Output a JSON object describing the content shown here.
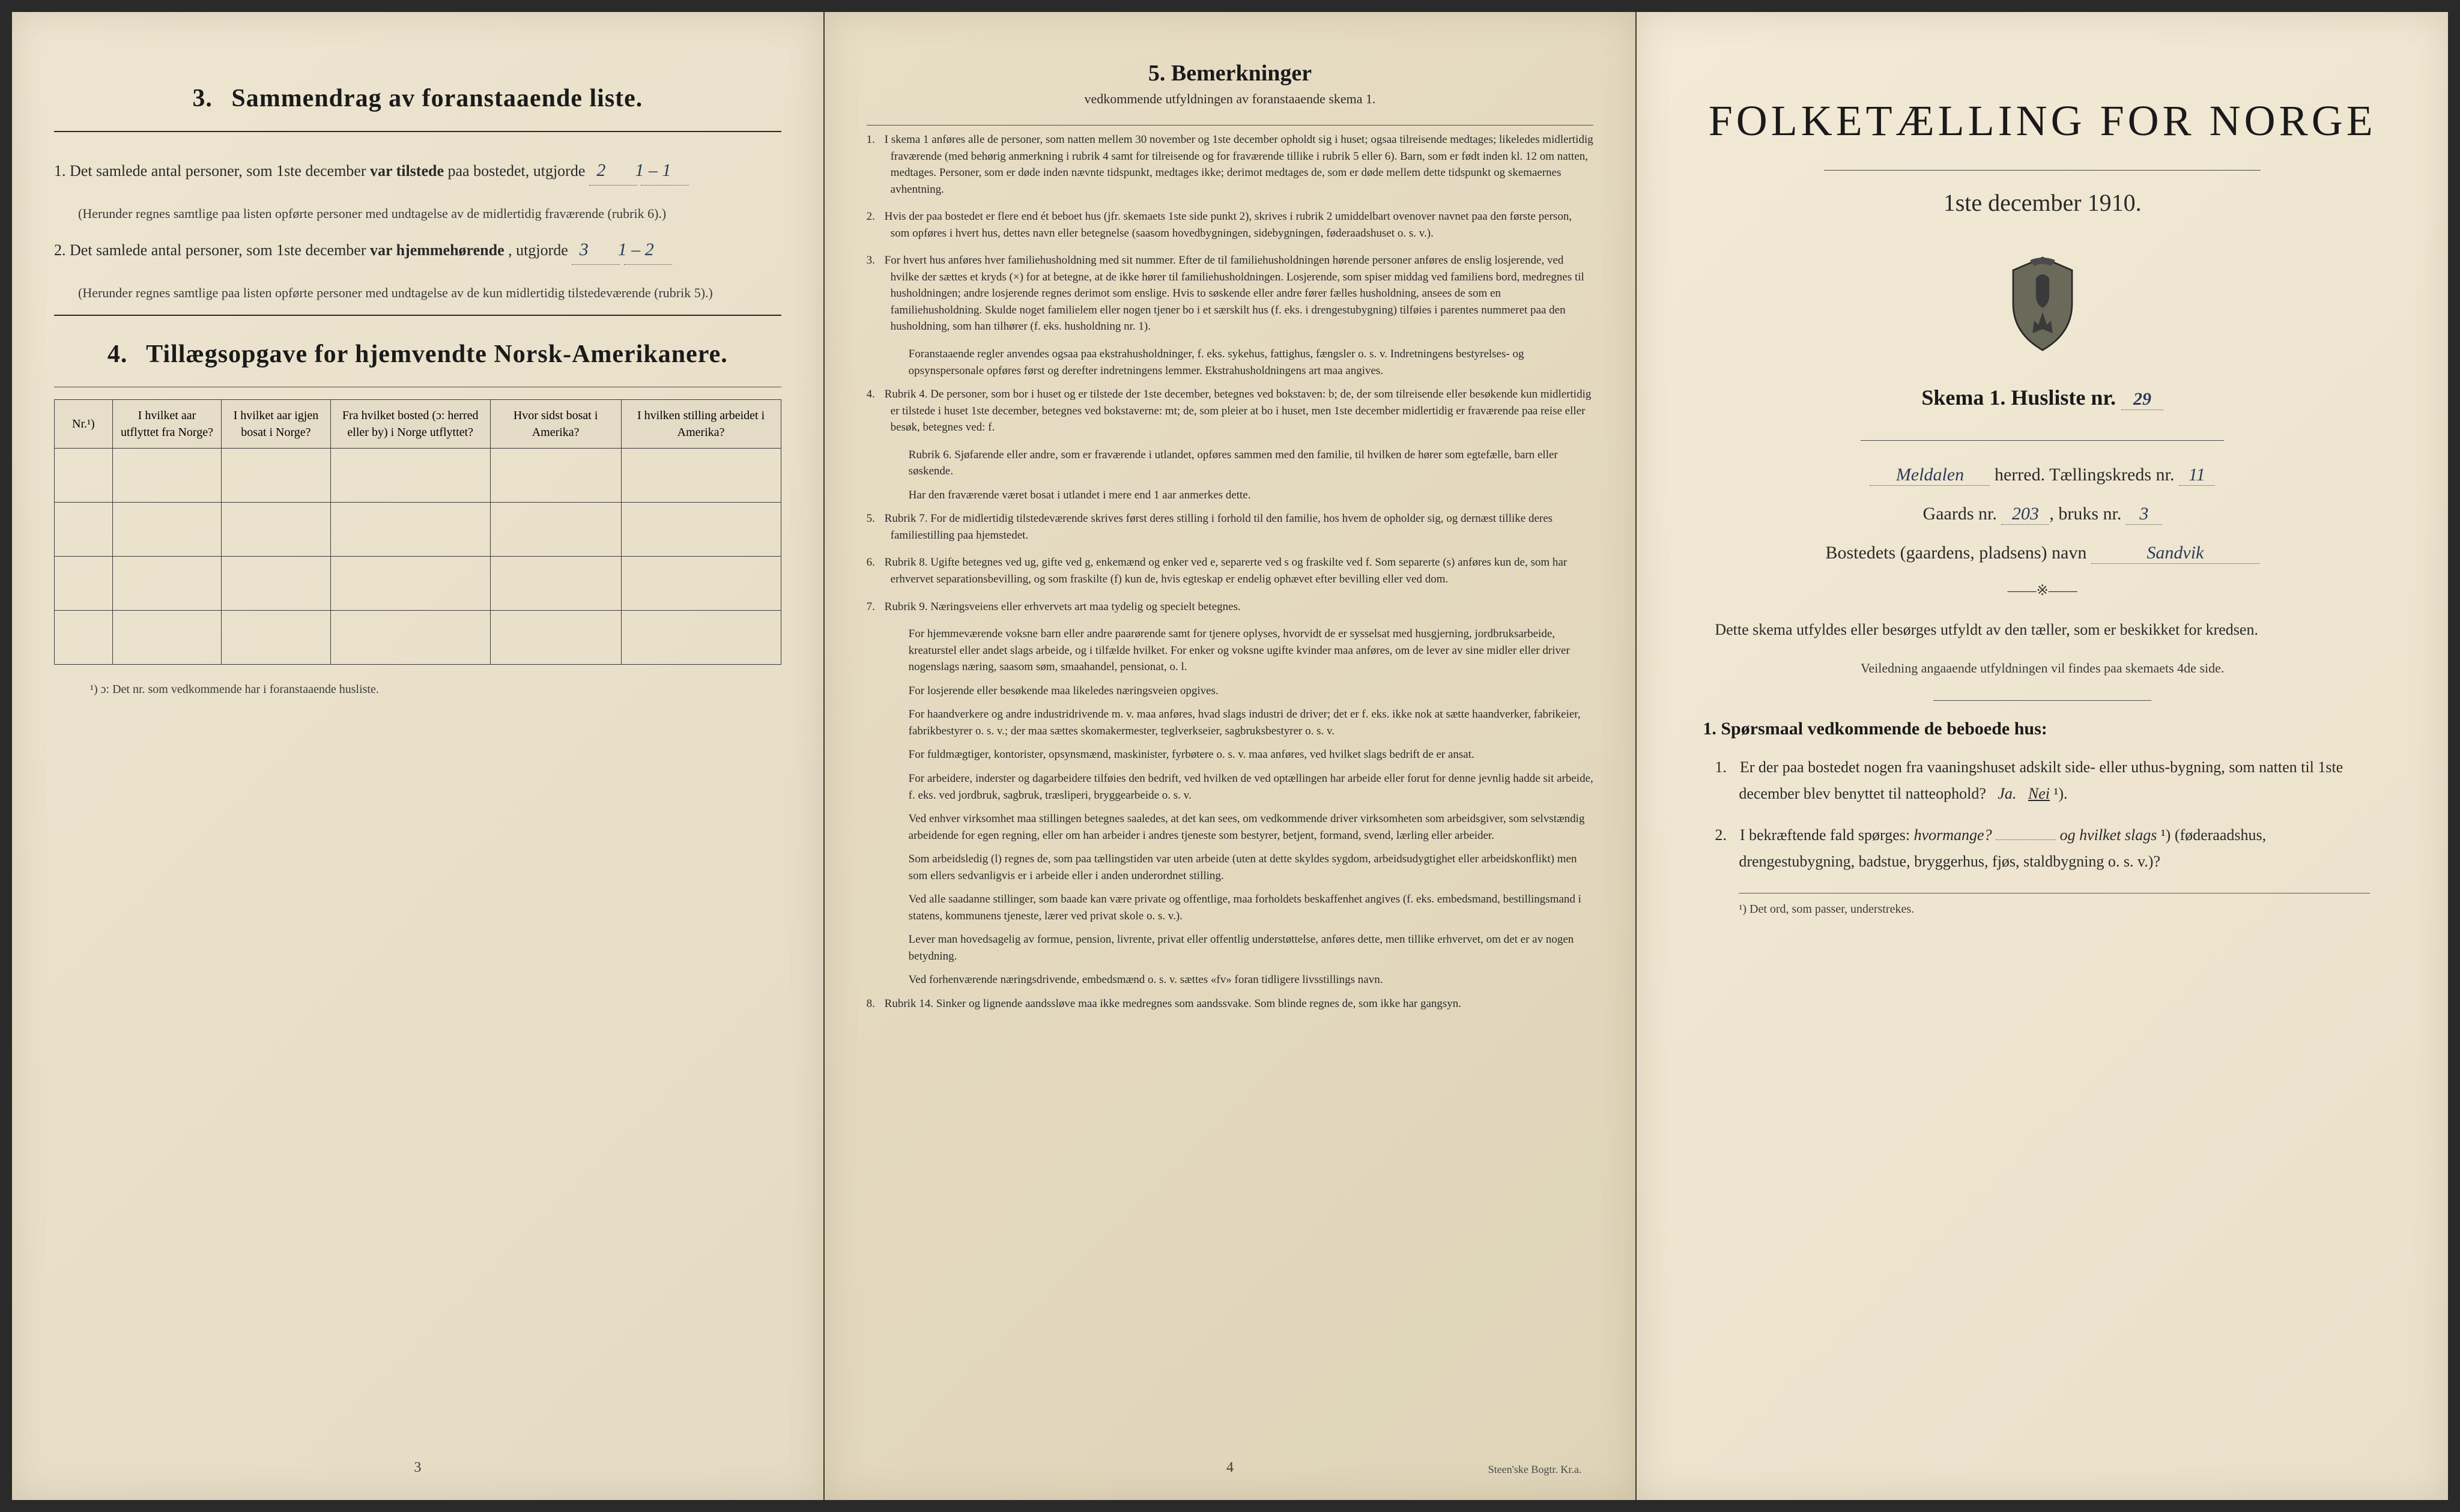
{
  "left": {
    "sec3": {
      "num": "3.",
      "title": "Sammendrag av foranstaaende liste.",
      "item1_pre": "1.  Det samlede antal personer, som 1ste december",
      "item1_bold": "var tilstede",
      "item1_post": "paa bostedet, utgjorde",
      "val1a": "2",
      "val1b": "1 – 1",
      "note1": "(Herunder regnes samtlige paa listen opførte personer med undtagelse av de midlertidig fraværende (rubrik 6).)",
      "item2_pre": "2.  Det samlede antal personer, som 1ste december",
      "item2_bold": "var hjemmehørende",
      "item2_post": ", utgjorde",
      "val2a": "3",
      "val2b": "1 – 2",
      "note2": "(Herunder regnes samtlige paa listen opførte personer med undtagelse av de kun midlertidig tilstedeværende (rubrik 5).)"
    },
    "sec4": {
      "num": "4.",
      "title": "Tillægsopgave for hjemvendte Norsk-Amerikanere.",
      "cols": [
        "Nr.¹)",
        "I hvilket aar utflyttet fra Norge?",
        "I hvilket aar igjen bosat i Norge?",
        "Fra hvilket bosted (ɔ: herred eller by) i Norge utflyttet?",
        "Hvor sidst bosat i Amerika?",
        "I hvilken stilling arbeidet i Amerika?"
      ],
      "footnote": "¹) ɔ: Det nr. som vedkommende har i foranstaaende husliste."
    },
    "pagenum": "3"
  },
  "middle": {
    "heading_num": "5.",
    "heading": "Bemerkninger",
    "sub": "vedkommende utfyldningen av foranstaaende skema 1.",
    "items": [
      {
        "n": "1.",
        "t": "I skema 1 anføres alle de personer, som natten mellem 30 november og 1ste december opholdt sig i huset; ogsaa tilreisende medtages; likeledes midlertidig fraværende (med behørig anmerkning i rubrik 4 samt for tilreisende og for fraværende tillike i rubrik 5 eller 6). Barn, som er født inden kl. 12 om natten, medtages. Personer, som er døde inden nævnte tidspunkt, medtages ikke; derimot medtages de, som er døde mellem dette tidspunkt og skemaernes avhentning."
      },
      {
        "n": "2.",
        "t": "Hvis der paa bostedet er flere end ét beboet hus (jfr. skemaets 1ste side punkt 2), skrives i rubrik 2 umiddelbart ovenover navnet paa den første person, som opføres i hvert hus, dettes navn eller betegnelse (saasom hovedbygningen, sidebygningen, føderaadshuset o. s. v.)."
      },
      {
        "n": "3.",
        "t": "For hvert hus anføres hver familiehusholdning med sit nummer. Efter de til familiehusholdningen hørende personer anføres de enslig losjerende, ved hvilke der sættes et kryds (×) for at betegne, at de ikke hører til familiehusholdningen. Losjerende, som spiser middag ved familiens bord, medregnes til husholdningen; andre losjerende regnes derimot som enslige. Hvis to søskende eller andre fører fælles husholdning, ansees de som en familiehusholdning. Skulde noget familielem eller nogen tjener bo i et særskilt hus (f. eks. i drengestubygning) tilføies i parentes nummeret paa den husholdning, som han tilhører (f. eks. husholdning nr. 1)."
      },
      {
        "n": "",
        "t": "Foranstaaende regler anvendes ogsaa paa ekstrahusholdninger, f. eks. sykehus, fattighus, fængsler o. s. v. Indretningens bestyrelses- og opsynspersonale opføres først og derefter indretningens lemmer. Ekstrahusholdningens art maa angives."
      },
      {
        "n": "4.",
        "t": "Rubrik 4. De personer, som bor i huset og er tilstede der 1ste december, betegnes ved bokstaven: b; de, der som tilreisende eller besøkende kun midlertidig er tilstede i huset 1ste december, betegnes ved bokstaverne: mt; de, som pleier at bo i huset, men 1ste december midlertidig er fraværende paa reise eller besøk, betegnes ved: f."
      },
      {
        "n": "",
        "t": "Rubrik 6. Sjøfarende eller andre, som er fraværende i utlandet, opføres sammen med den familie, til hvilken de hører som egtefælle, barn eller søskende."
      },
      {
        "n": "",
        "t": "Har den fraværende været bosat i utlandet i mere end 1 aar anmerkes dette."
      },
      {
        "n": "5.",
        "t": "Rubrik 7. For de midlertidig tilstedeværende skrives først deres stilling i forhold til den familie, hos hvem de opholder sig, og dernæst tillike deres familiestilling paa hjemstedet."
      },
      {
        "n": "6.",
        "t": "Rubrik 8. Ugifte betegnes ved ug, gifte ved g, enkemænd og enker ved e, separerte ved s og fraskilte ved f. Som separerte (s) anføres kun de, som har erhvervet separationsbevilling, og som fraskilte (f) kun de, hvis egteskap er endelig ophævet efter bevilling eller ved dom."
      },
      {
        "n": "7.",
        "t": "Rubrik 9. Næringsveiens eller erhvervets art maa tydelig og specielt betegnes."
      },
      {
        "n": "",
        "t": "For hjemmeværende voksne barn eller andre paarørende samt for tjenere oplyses, hvorvidt de er sysselsat med husgjerning, jordbruksarbeide, kreaturstel eller andet slags arbeide, og i tilfælde hvilket. For enker og voksne ugifte kvinder maa anføres, om de lever av sine midler eller driver nogenslags næring, saasom søm, smaahandel, pensionat, o. l."
      },
      {
        "n": "",
        "t": "For losjerende eller besøkende maa likeledes næringsveien opgives."
      },
      {
        "n": "",
        "t": "For haandverkere og andre industridrivende m. v. maa anføres, hvad slags industri de driver; det er f. eks. ikke nok at sætte haandverker, fabrikeier, fabrikbestyrer o. s. v.; der maa sættes skomakermester, teglverkseier, sagbruksbestyrer o. s. v."
      },
      {
        "n": "",
        "t": "For fuldmægtiger, kontorister, opsynsmænd, maskinister, fyrbøtere o. s. v. maa anføres, ved hvilket slags bedrift de er ansat."
      },
      {
        "n": "",
        "t": "For arbeidere, inderster og dagarbeidere tilføies den bedrift, ved hvilken de ved optællingen har arbeide eller forut for denne jevnlig hadde sit arbeide, f. eks. ved jordbruk, sagbruk, træsliperi, bryggearbeide o. s. v."
      },
      {
        "n": "",
        "t": "Ved enhver virksomhet maa stillingen betegnes saaledes, at det kan sees, om vedkommende driver virksomheten som arbeidsgiver, som selvstændig arbeidende for egen regning, eller om han arbeider i andres tjeneste som bestyrer, betjent, formand, svend, lærling eller arbeider."
      },
      {
        "n": "",
        "t": "Som arbeidsledig (l) regnes de, som paa tællingstiden var uten arbeide (uten at dette skyldes sygdom, arbeidsudygtighet eller arbeidskonflikt) men som ellers sedvanligvis er i arbeide eller i anden underordnet stilling."
      },
      {
        "n": "",
        "t": "Ved alle saadanne stillinger, som baade kan være private og offentlige, maa forholdets beskaffenhet angives (f. eks. embedsmand, bestillingsmand i statens, kommunens tjeneste, lærer ved privat skole o. s. v.)."
      },
      {
        "n": "",
        "t": "Lever man hovedsagelig av formue, pension, livrente, privat eller offentlig understøttelse, anføres dette, men tillike erhvervet, om det er av nogen betydning."
      },
      {
        "n": "",
        "t": "Ved forhenværende næringsdrivende, embedsmænd o. s. v. sættes «fv» foran tidligere livsstillings navn."
      },
      {
        "n": "8.",
        "t": "Rubrik 14. Sinker og lignende aandssløve maa ikke medregnes som aandssvake. Som blinde regnes de, som ikke har gangsyn."
      }
    ],
    "pagenum": "4",
    "imprint": "Steen'ske Bogtr. Kr.a."
  },
  "right": {
    "title": "FOLKETÆLLING FOR NORGE",
    "date": "1ste december 1910.",
    "skema_pre": "Skema 1.  Husliste nr.",
    "husliste_nr": "29",
    "herred_val": "Meldalen",
    "herred_lbl": "herred.   Tællingskreds nr.",
    "kreds_nr": "11",
    "gaards_lbl": "Gaards nr.",
    "gaards_nr": "203",
    "bruks_lbl": "bruks nr.",
    "bruks_nr": "3",
    "bosted_lbl": "Bostedets (gaardens, pladsens) navn",
    "bosted_val": "Sandvik",
    "instr": "Dette skema utfyldes eller besørges utfyldt av den tæller, som er beskikket for kredsen.",
    "instr_small": "Veiledning angaaende utfyldningen vil findes paa skemaets 4de side.",
    "q_heading_num": "1.",
    "q_heading": "Spørsmaal vedkommende de beboede hus:",
    "q1_n": "1.",
    "q1": "Er der paa bostedet nogen fra vaaningshuset adskilt side- eller uthus-bygning, som natten til 1ste december blev benyttet til natteophold?",
    "q1_ja": "Ja.",
    "q1_nei": "Nei",
    "q1_sup": "¹).",
    "q2_n": "2.",
    "q2_pre": "I bekræftende fald spørges:",
    "q2_hvor": "hvormange?",
    "q2_og": "og hvilket slags",
    "q2_sup": "¹)",
    "q2_post": "(føderaadshus, drengestubygning, badstue, bryggerhus, fjøs, staldbygning o. s. v.)?",
    "footnote": "¹) Det ord, som passer, understrekes."
  }
}
